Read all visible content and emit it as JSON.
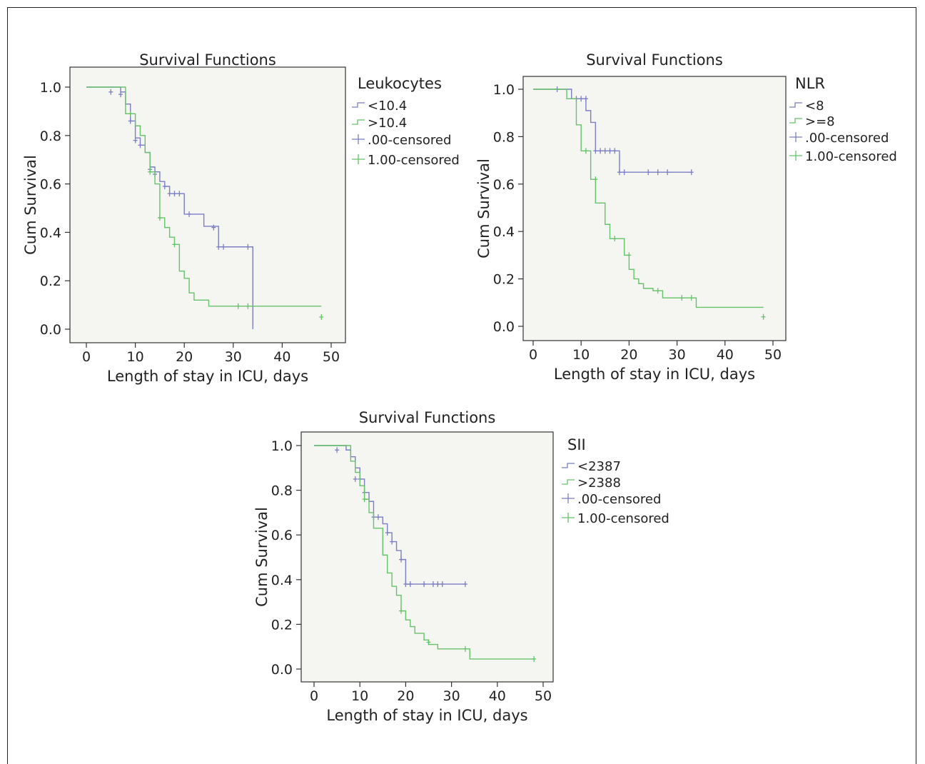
{
  "chart_data": [
    {
      "id": "leukocytes",
      "type": "line",
      "title": "Survival Functions",
      "xlabel": "Length of stay in ICU, days",
      "ylabel": "Cum Survival",
      "xlim": [
        0,
        50
      ],
      "ylim": [
        0,
        1.0
      ],
      "x_ticks": [
        0,
        10,
        20,
        30,
        40,
        50
      ],
      "y_ticks": [
        0.0,
        0.2,
        0.4,
        0.6,
        0.8,
        1.0
      ],
      "legend_title": "Leukocytes",
      "legend_position": "right",
      "series": [
        {
          "name": "<10.4",
          "color": "#7b7ec4",
          "steps": [
            [
              0,
              1.0
            ],
            [
              7,
              0.98
            ],
            [
              8,
              0.93
            ],
            [
              9,
              0.86
            ],
            [
              10,
              0.79
            ],
            [
              11,
              0.76
            ],
            [
              12,
              0.73
            ],
            [
              13,
              0.67
            ],
            [
              14,
              0.65
            ],
            [
              15,
              0.61
            ],
            [
              16,
              0.59
            ],
            [
              17,
              0.56
            ],
            [
              20,
              0.475
            ],
            [
              24,
              0.425
            ],
            [
              27,
              0.34
            ],
            [
              34,
              0.0
            ]
          ],
          "end_x": 34,
          "censored": [
            [
              5,
              0.98
            ],
            [
              7,
              0.97
            ],
            [
              9,
              0.86
            ],
            [
              10,
              0.78
            ],
            [
              11,
              0.76
            ],
            [
              13,
              0.66
            ],
            [
              14,
              0.64
            ],
            [
              16,
              0.59
            ],
            [
              17,
              0.56
            ],
            [
              18,
              0.56
            ],
            [
              19,
              0.56
            ],
            [
              21,
              0.475
            ],
            [
              26,
              0.42
            ],
            [
              27,
              0.34
            ],
            [
              28,
              0.34
            ],
            [
              33,
              0.34
            ]
          ]
        },
        {
          "name": ">10.4",
          "color": "#66c26a",
          "steps": [
            [
              0,
              1.0
            ],
            [
              8,
              0.89
            ],
            [
              10,
              0.84
            ],
            [
              11,
              0.8
            ],
            [
              12,
              0.73
            ],
            [
              13,
              0.65
            ],
            [
              14,
              0.6
            ],
            [
              15,
              0.46
            ],
            [
              16,
              0.42
            ],
            [
              17,
              0.38
            ],
            [
              18,
              0.35
            ],
            [
              19,
              0.24
            ],
            [
              20,
              0.21
            ],
            [
              21,
              0.15
            ],
            [
              22,
              0.12
            ],
            [
              25,
              0.095
            ]
          ],
          "end_x": 48,
          "censored": [
            [
              9,
              0.89
            ],
            [
              13,
              0.65
            ],
            [
              15,
              0.46
            ],
            [
              18,
              0.35
            ],
            [
              31,
              0.095
            ],
            [
              33,
              0.095
            ],
            [
              48,
              0.05
            ]
          ]
        }
      ],
      "legend_entries": [
        "<10.4",
        ">10.4",
        ".00-censored",
        "1.00-censored"
      ]
    },
    {
      "id": "nlr",
      "type": "line",
      "title": "Survival Functions",
      "xlabel": "Length of stay in ICU, days",
      "ylabel": "Cum Survival",
      "xlim": [
        0,
        50
      ],
      "ylim": [
        0,
        1.0
      ],
      "x_ticks": [
        0,
        10,
        20,
        30,
        40,
        50
      ],
      "y_ticks": [
        0.0,
        0.2,
        0.4,
        0.6,
        0.8,
        1.0
      ],
      "legend_title": "NLR",
      "legend_position": "right",
      "series": [
        {
          "name": "<8",
          "color": "#7b7ec4",
          "steps": [
            [
              0,
              1.0
            ],
            [
              8,
              0.96
            ],
            [
              11,
              0.91
            ],
            [
              12,
              0.86
            ],
            [
              13,
              0.74
            ],
            [
              18,
              0.65
            ]
          ],
          "end_x": 33,
          "censored": [
            [
              5,
              1.0
            ],
            [
              9,
              0.96
            ],
            [
              10,
              0.96
            ],
            [
              11,
              0.96
            ],
            [
              13,
              0.74
            ],
            [
              14,
              0.74
            ],
            [
              15,
              0.74
            ],
            [
              16,
              0.74
            ],
            [
              17,
              0.74
            ],
            [
              18,
              0.65
            ],
            [
              19,
              0.65
            ],
            [
              24,
              0.65
            ],
            [
              26,
              0.65
            ],
            [
              28,
              0.65
            ],
            [
              33,
              0.65
            ]
          ]
        },
        {
          "name": ">=8",
          "color": "#66c26a",
          "steps": [
            [
              0,
              1.0
            ],
            [
              7,
              0.96
            ],
            [
              9,
              0.85
            ],
            [
              10,
              0.74
            ],
            [
              12,
              0.62
            ],
            [
              13,
              0.52
            ],
            [
              15,
              0.43
            ],
            [
              16,
              0.37
            ],
            [
              19,
              0.3
            ],
            [
              20,
              0.24
            ],
            [
              21,
              0.2
            ],
            [
              22,
              0.18
            ],
            [
              23,
              0.16
            ],
            [
              25,
              0.15
            ],
            [
              27,
              0.12
            ],
            [
              34,
              0.08
            ]
          ],
          "end_x": 48,
          "censored": [
            [
              11,
              0.74
            ],
            [
              13,
              0.62
            ],
            [
              17,
              0.37
            ],
            [
              20,
              0.3
            ],
            [
              26,
              0.15
            ],
            [
              31,
              0.12
            ],
            [
              33,
              0.12
            ],
            [
              48,
              0.04
            ]
          ]
        }
      ],
      "legend_entries": [
        "<8",
        ">=8",
        ".00-censored",
        "1.00-censored"
      ]
    },
    {
      "id": "sii",
      "type": "line",
      "title": "Survival Functions",
      "xlabel": "Length of stay in ICU, days",
      "ylabel": "Cum Survival",
      "xlim": [
        0,
        50
      ],
      "ylim": [
        0,
        1.0
      ],
      "x_ticks": [
        0,
        10,
        20,
        30,
        40,
        50
      ],
      "y_ticks": [
        0.0,
        0.2,
        0.4,
        0.6,
        0.8,
        1.0
      ],
      "legend_title": "SII",
      "legend_position": "right",
      "series": [
        {
          "name": "<2387",
          "color": "#7b7ec4",
          "steps": [
            [
              0,
              1.0
            ],
            [
              7,
              0.98
            ],
            [
              8,
              0.95
            ],
            [
              9,
              0.9
            ],
            [
              10,
              0.85
            ],
            [
              11,
              0.79
            ],
            [
              12,
              0.75
            ],
            [
              13,
              0.68
            ],
            [
              15,
              0.65
            ],
            [
              16,
              0.61
            ],
            [
              17,
              0.57
            ],
            [
              18,
              0.53
            ],
            [
              19,
              0.49
            ],
            [
              20,
              0.38
            ]
          ],
          "end_x": 33,
          "censored": [
            [
              5,
              0.98
            ],
            [
              9,
              0.85
            ],
            [
              10,
              0.85
            ],
            [
              11,
              0.79
            ],
            [
              13,
              0.68
            ],
            [
              14,
              0.68
            ],
            [
              16,
              0.61
            ],
            [
              17,
              0.57
            ],
            [
              19,
              0.49
            ],
            [
              20,
              0.38
            ],
            [
              21,
              0.38
            ],
            [
              24,
              0.38
            ],
            [
              26,
              0.38
            ],
            [
              27,
              0.38
            ],
            [
              28,
              0.38
            ],
            [
              33,
              0.38
            ]
          ]
        },
        {
          "name": ">2388",
          "color": "#66c26a",
          "steps": [
            [
              0,
              1.0
            ],
            [
              8,
              0.93
            ],
            [
              9,
              0.88
            ],
            [
              10,
              0.82
            ],
            [
              11,
              0.76
            ],
            [
              12,
              0.7
            ],
            [
              13,
              0.63
            ],
            [
              15,
              0.51
            ],
            [
              16,
              0.43
            ],
            [
              17,
              0.37
            ],
            [
              18,
              0.33
            ],
            [
              19,
              0.26
            ],
            [
              20,
              0.22
            ],
            [
              21,
              0.19
            ],
            [
              22,
              0.16
            ],
            [
              24,
              0.13
            ],
            [
              25,
              0.11
            ],
            [
              27,
              0.09
            ],
            [
              34,
              0.045
            ]
          ],
          "end_x": 48,
          "censored": [
            [
              11,
              0.76
            ],
            [
              19,
              0.26
            ],
            [
              25,
              0.12
            ],
            [
              33,
              0.09
            ],
            [
              48,
              0.045
            ]
          ]
        }
      ],
      "legend_entries": [
        "<2387",
        ">2388",
        ".00-censored",
        "1.00-censored"
      ]
    }
  ]
}
